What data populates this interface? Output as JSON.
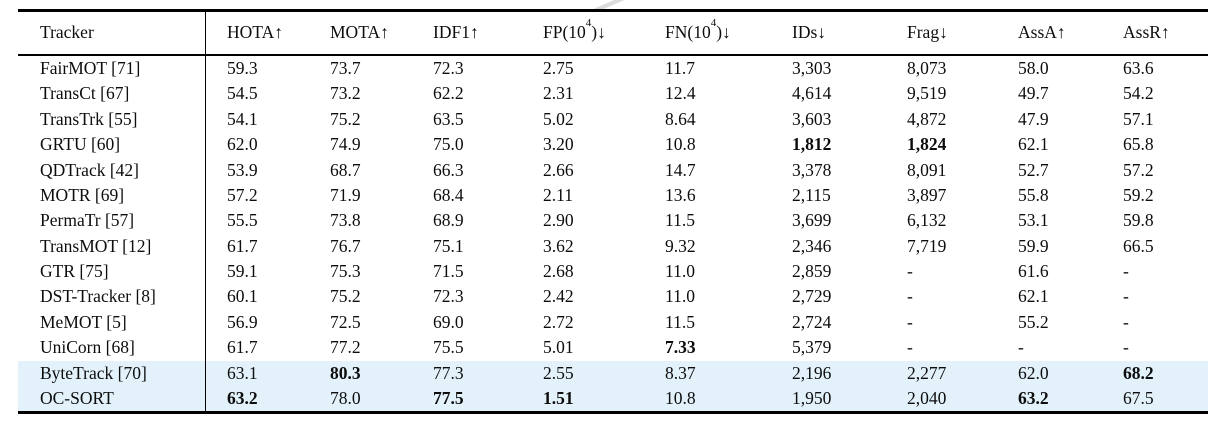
{
  "table": {
    "columns": [
      {
        "key": "tracker",
        "label": "Tracker",
        "sup": "",
        "tail": ""
      },
      {
        "key": "hota",
        "label": "HOTA",
        "sup": "",
        "tail": "↑"
      },
      {
        "key": "mota",
        "label": "MOTA",
        "sup": "",
        "tail": "↑"
      },
      {
        "key": "idf1",
        "label": "IDF1",
        "sup": "",
        "tail": "↑"
      },
      {
        "key": "fp",
        "label": "FP(10",
        "sup": "4",
        "tail": ")↓"
      },
      {
        "key": "fn",
        "label": "FN(10",
        "sup": "4",
        "tail": ")↓"
      },
      {
        "key": "ids",
        "label": "IDs",
        "sup": "",
        "tail": "↓"
      },
      {
        "key": "frag",
        "label": "Frag",
        "sup": "",
        "tail": "↓"
      },
      {
        "key": "assa",
        "label": "AssA",
        "sup": "",
        "tail": "↑"
      },
      {
        "key": "assr",
        "label": "AssR",
        "sup": "",
        "tail": "↑"
      }
    ],
    "rows": [
      {
        "tracker": "FairMOT [71]",
        "values": [
          "59.3",
          "73.7",
          "72.3",
          "2.75",
          "11.7",
          "3,303",
          "8,073",
          "58.0",
          "63.6"
        ],
        "bold": [],
        "highlight": false
      },
      {
        "tracker": "TransCt [67]",
        "values": [
          "54.5",
          "73.2",
          "62.2",
          "2.31",
          "12.4",
          "4,614",
          "9,519",
          "49.7",
          "54.2"
        ],
        "bold": [],
        "highlight": false
      },
      {
        "tracker": "TransTrk [55]",
        "values": [
          "54.1",
          "75.2",
          "63.5",
          "5.02",
          "8.64",
          "3,603",
          "4,872",
          "47.9",
          "57.1"
        ],
        "bold": [],
        "highlight": false
      },
      {
        "tracker": "GRTU [60]",
        "values": [
          "62.0",
          "74.9",
          "75.0",
          "3.20",
          "10.8",
          "1,812",
          "1,824",
          "62.1",
          "65.8"
        ],
        "bold": [
          5,
          6
        ],
        "highlight": false
      },
      {
        "tracker": "QDTrack [42]",
        "values": [
          "53.9",
          "68.7",
          "66.3",
          "2.66",
          "14.7",
          "3,378",
          "8,091",
          "52.7",
          "57.2"
        ],
        "bold": [],
        "highlight": false
      },
      {
        "tracker": "MOTR [69]",
        "values": [
          "57.2",
          "71.9",
          "68.4",
          "2.11",
          "13.6",
          "2,115",
          "3,897",
          "55.8",
          "59.2"
        ],
        "bold": [],
        "highlight": false
      },
      {
        "tracker": "PermaTr [57]",
        "values": [
          "55.5",
          "73.8",
          "68.9",
          "2.90",
          "11.5",
          "3,699",
          "6,132",
          "53.1",
          "59.8"
        ],
        "bold": [],
        "highlight": false
      },
      {
        "tracker": "TransMOT [12]",
        "values": [
          "61.7",
          "76.7",
          "75.1",
          "3.62",
          "9.32",
          "2,346",
          "7,719",
          "59.9",
          "66.5"
        ],
        "bold": [],
        "highlight": false
      },
      {
        "tracker": "GTR [75]",
        "values": [
          "59.1",
          "75.3",
          "71.5",
          "2.68",
          "11.0",
          "2,859",
          "-",
          "61.6",
          "-"
        ],
        "bold": [],
        "highlight": false
      },
      {
        "tracker": "DST-Tracker [8]",
        "values": [
          "60.1",
          "75.2",
          "72.3",
          "2.42",
          "11.0",
          "2,729",
          "-",
          "62.1",
          "-"
        ],
        "bold": [],
        "highlight": false
      },
      {
        "tracker": "MeMOT [5]",
        "values": [
          "56.9",
          "72.5",
          "69.0",
          "2.72",
          "11.5",
          "2,724",
          "-",
          "55.2",
          "-"
        ],
        "bold": [],
        "highlight": false
      },
      {
        "tracker": "UniCorn [68]",
        "values": [
          "61.7",
          "77.2",
          "75.5",
          "5.01",
          "7.33",
          "5,379",
          "-",
          "-",
          "-"
        ],
        "bold": [
          4
        ],
        "highlight": false
      },
      {
        "tracker": "ByteTrack [70]",
        "values": [
          "63.1",
          "80.3",
          "77.3",
          "2.55",
          "8.37",
          "2,196",
          "2,277",
          "62.0",
          "68.2"
        ],
        "bold": [
          1,
          8
        ],
        "highlight": true
      },
      {
        "tracker": "OC-SORT",
        "values": [
          "63.2",
          "78.0",
          "77.5",
          "1.51",
          "10.8",
          "1,950",
          "2,040",
          "63.2",
          "67.5"
        ],
        "bold": [
          0,
          2,
          3,
          7
        ],
        "highlight": true
      }
    ]
  },
  "colors": {
    "highlight_row": "#e2f1fa",
    "text": "#0d0d0d",
    "rule": "#000000"
  }
}
